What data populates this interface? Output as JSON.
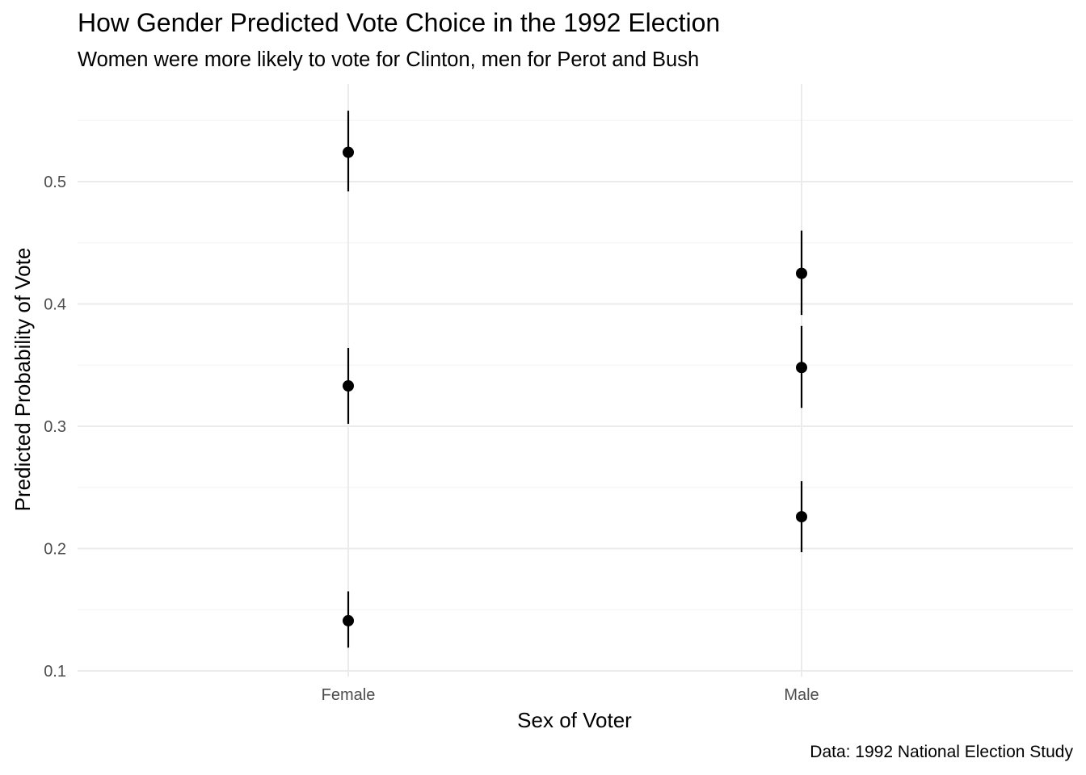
{
  "chart_data": {
    "type": "scatter",
    "title": "How Gender Predicted Vote Choice in the 1992 Election",
    "subtitle": "Women were more likely to vote for Clinton, men for Perot and Bush",
    "caption": "Data: 1992 National Election Study",
    "xlabel": "Sex of Voter",
    "ylabel": "Predicted Probability of Vote",
    "categories": [
      "Female",
      "Male"
    ],
    "ylim": [
      0.1,
      0.565
    ],
    "yticks": [
      0.1,
      0.2,
      0.3,
      0.4,
      0.5
    ],
    "ytick_labels": [
      "0.1",
      "0.2",
      "0.3",
      "0.4",
      "0.5"
    ],
    "grid": true,
    "points": [
      {
        "category": "Female",
        "y": 0.524,
        "low": 0.492,
        "high": 0.558
      },
      {
        "category": "Female",
        "y": 0.333,
        "low": 0.302,
        "high": 0.364
      },
      {
        "category": "Female",
        "y": 0.141,
        "low": 0.119,
        "high": 0.165
      },
      {
        "category": "Male",
        "y": 0.425,
        "low": 0.391,
        "high": 0.46
      },
      {
        "category": "Male",
        "y": 0.348,
        "low": 0.315,
        "high": 0.382
      },
      {
        "category": "Male",
        "y": 0.226,
        "low": 0.197,
        "high": 0.255
      }
    ]
  }
}
